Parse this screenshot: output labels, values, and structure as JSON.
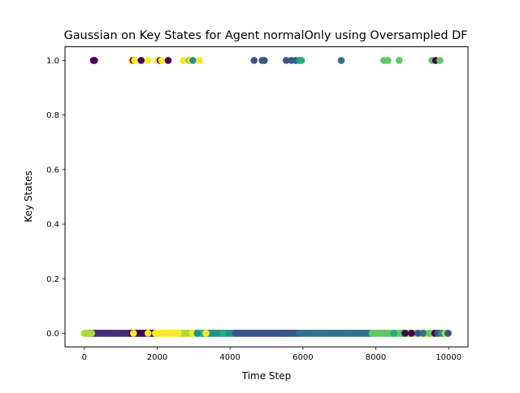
{
  "chart_data": {
    "type": "scatter",
    "title": "Gaussian on Key States for Agent normalOnly using Oversampled DF",
    "xlabel": "Time Step",
    "ylabel": "Key States",
    "xlim": [
      -530,
      10530
    ],
    "ylim": [
      -0.05,
      1.05
    ],
    "x_ticks": [
      0,
      2000,
      4000,
      6000,
      8000,
      10000
    ],
    "y_ticks": [
      0.0,
      0.2,
      0.4,
      0.6,
      0.8,
      1.0
    ],
    "x_tick_labels": [
      "0",
      "2000",
      "4000",
      "6000",
      "8000",
      "10000"
    ],
    "y_tick_labels": [
      "0.0",
      "0.2",
      "0.4",
      "0.6",
      "0.8",
      "1.0"
    ],
    "grid": false,
    "legend": "none",
    "colors": {
      "dark_purple": "#440154",
      "indigo": "#472c7a",
      "slate_blue": "#3b528b",
      "steel_blue": "#2c728e",
      "teal": "#21918c",
      "sea_green": "#27ad81",
      "light_green": "#5ec962",
      "yellow_green": "#aadc32",
      "yellow": "#fde725"
    },
    "top_points": [
      {
        "x": 250,
        "color": "dark_purple"
      },
      {
        "x": 280,
        "color": "dark_purple"
      },
      {
        "x": 1300,
        "color": "yellow"
      },
      {
        "x": 1340,
        "color": "dark_purple"
      },
      {
        "x": 1380,
        "color": "yellow"
      },
      {
        "x": 1560,
        "color": "dark_purple"
      },
      {
        "x": 1750,
        "color": "yellow"
      },
      {
        "x": 2020,
        "color": "yellow"
      },
      {
        "x": 2080,
        "color": "dark_purple"
      },
      {
        "x": 2120,
        "color": "yellow"
      },
      {
        "x": 2300,
        "color": "dark_purple"
      },
      {
        "x": 2720,
        "color": "yellow"
      },
      {
        "x": 2880,
        "color": "light_green"
      },
      {
        "x": 2920,
        "color": "yellow"
      },
      {
        "x": 2980,
        "color": "teal"
      },
      {
        "x": 3160,
        "color": "yellow"
      },
      {
        "x": 4660,
        "color": "slate_blue"
      },
      {
        "x": 4880,
        "color": "slate_blue"
      },
      {
        "x": 4940,
        "color": "slate_blue"
      },
      {
        "x": 5540,
        "color": "slate_blue"
      },
      {
        "x": 5680,
        "color": "slate_blue"
      },
      {
        "x": 5800,
        "color": "slate_blue"
      },
      {
        "x": 5900,
        "color": "teal"
      },
      {
        "x": 5960,
        "color": "sea_green"
      },
      {
        "x": 7050,
        "color": "steel_blue"
      },
      {
        "x": 8220,
        "color": "light_green"
      },
      {
        "x": 8330,
        "color": "light_green"
      },
      {
        "x": 8640,
        "color": "light_green"
      },
      {
        "x": 9540,
        "color": "light_green"
      },
      {
        "x": 9640,
        "color": "dark_purple"
      },
      {
        "x": 9760,
        "color": "light_green"
      }
    ],
    "bottom_runs": [
      {
        "from": 0,
        "to": 180,
        "step": 30,
        "color": "yellow_green"
      },
      {
        "from": 150,
        "to": 1300,
        "step": 30,
        "color": "indigo"
      },
      {
        "from": 1300,
        "to": 1950,
        "step": 30,
        "color": "dark_purple"
      },
      {
        "from": 1950,
        "to": 2550,
        "step": 35,
        "color": "yellow"
      },
      {
        "from": 2550,
        "to": 3100,
        "step": 30,
        "color": "yellow_green"
      },
      {
        "from": 3100,
        "to": 3400,
        "step": 30,
        "color": "sea_green"
      },
      {
        "from": 3400,
        "to": 4150,
        "step": 30,
        "color": "teal"
      },
      {
        "from": 4150,
        "to": 5900,
        "step": 30,
        "color": "slate_blue"
      },
      {
        "from": 5900,
        "to": 7900,
        "step": 30,
        "color": "steel_blue"
      },
      {
        "from": 7900,
        "to": 8950,
        "step": 30,
        "color": "light_green"
      },
      {
        "from": 8950,
        "to": 10000,
        "step": 30,
        "color": "yellow_green"
      }
    ],
    "bottom_points": [
      {
        "x": 30,
        "color": "yellow_green"
      },
      {
        "x": 120,
        "color": "yellow_green"
      },
      {
        "x": 200,
        "color": "yellow_green"
      },
      {
        "x": 1350,
        "color": "yellow"
      },
      {
        "x": 1750,
        "color": "yellow"
      },
      {
        "x": 2050,
        "color": "yellow"
      },
      {
        "x": 2150,
        "color": "yellow"
      },
      {
        "x": 2350,
        "color": "yellow"
      },
      {
        "x": 2480,
        "color": "yellow"
      },
      {
        "x": 2580,
        "color": "yellow"
      },
      {
        "x": 2960,
        "color": "yellow"
      },
      {
        "x": 3100,
        "color": "teal"
      },
      {
        "x": 3340,
        "color": "yellow"
      },
      {
        "x": 3800,
        "color": "sea_green"
      },
      {
        "x": 5560,
        "color": "slate_blue"
      },
      {
        "x": 6900,
        "color": "steel_blue"
      },
      {
        "x": 7900,
        "color": "light_green"
      },
      {
        "x": 8500,
        "color": "sea_green"
      },
      {
        "x": 8800,
        "color": "dark_purple"
      },
      {
        "x": 8980,
        "color": "dark_purple"
      },
      {
        "x": 9160,
        "color": "slate_blue"
      },
      {
        "x": 9300,
        "color": "steel_blue"
      },
      {
        "x": 9480,
        "color": "light_green"
      },
      {
        "x": 9620,
        "color": "dark_purple"
      },
      {
        "x": 9700,
        "color": "slate_blue"
      },
      {
        "x": 9800,
        "color": "teal"
      },
      {
        "x": 9900,
        "color": "yellow_green"
      },
      {
        "x": 9980,
        "color": "slate_blue"
      }
    ]
  }
}
